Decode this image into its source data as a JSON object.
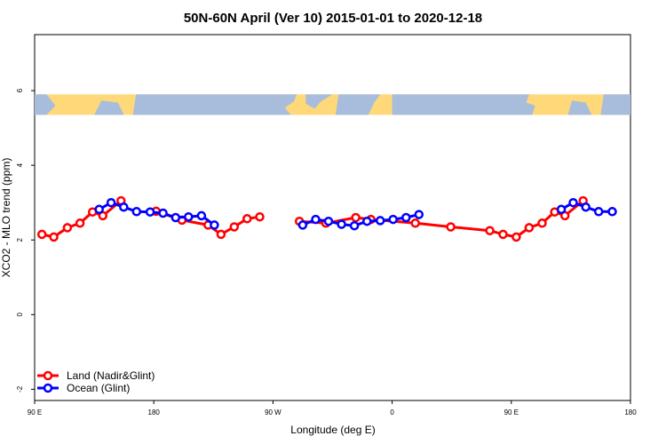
{
  "chart_data": {
    "type": "line",
    "title": "50N-60N April (Ver 10)   2015-01-01 to 2020-12-18",
    "xlabel": "Longitude (deg E)",
    "ylabel": "XCO2 - MLO trend (ppm)",
    "xlim": [
      90,
      270
    ],
    "ylim": [
      -2.3,
      7.5
    ],
    "xticks": [
      {
        "value": 90,
        "label": "90 E"
      },
      {
        "value": 126,
        "label": "180"
      },
      {
        "value": 162,
        "label": "90 W"
      },
      {
        "value": 198,
        "label": "0"
      },
      {
        "value": 234,
        "label": "90 E"
      },
      {
        "value": 270,
        "label": "180"
      }
    ],
    "yticks": [
      {
        "value": -2,
        "label": "-2"
      },
      {
        "value": 0,
        "label": "0"
      },
      {
        "value": 2,
        "label": "2"
      },
      {
        "value": 4,
        "label": "4"
      },
      {
        "value": 6,
        "label": "6"
      }
    ],
    "map_band": {
      "ymin": 5.35,
      "ymax": 5.9,
      "ocean_color": "#a8bddb",
      "land_color": "#ffd87a"
    },
    "series": [
      {
        "name": "Land (Nadir&Glint)",
        "color": "#ff0000",
        "segments": [
          [
            [
              92.2,
              2.15
            ],
            [
              95.8,
              2.08
            ],
            [
              99.9,
              2.33
            ],
            [
              103.7,
              2.45
            ],
            [
              107.5,
              2.75
            ],
            [
              110.6,
              2.65
            ],
            [
              116.1,
              3.05
            ]
          ],
          [
            [
              126.7,
              2.77
            ],
            [
              134.5,
              2.53
            ],
            [
              142.4,
              2.4
            ],
            [
              146.3,
              2.15
            ],
            [
              150.3,
              2.35
            ],
            [
              154.2,
              2.57
            ],
            [
              158,
              2.62
            ]
          ],
          [
            [
              170,
              2.5
            ],
            [
              178,
              2.45
            ],
            [
              187,
              2.6
            ],
            [
              191.6,
              2.55
            ],
            [
              205,
              2.45
            ],
            [
              215.7,
              2.35
            ],
            [
              227.5,
              2.25
            ],
            [
              231.5,
              2.15
            ],
            [
              235.5,
              2.08
            ],
            [
              239.4,
              2.33
            ],
            [
              243.3,
              2.45
            ],
            [
              247.1,
              2.75
            ],
            [
              250.2,
              2.65
            ],
            [
              255.7,
              3.05
            ]
          ]
        ]
      },
      {
        "name": "Ocean (Glint)",
        "color": "#0000ff",
        "segments": [
          [
            [
              109.5,
              2.82
            ],
            [
              113.1,
              3.0
            ],
            [
              116.9,
              2.88
            ],
            [
              120.8,
              2.76
            ],
            [
              124.9,
              2.75
            ],
            [
              128.8,
              2.72
            ],
            [
              132.6,
              2.6
            ],
            [
              136.5,
              2.62
            ],
            [
              140.4,
              2.65
            ],
            [
              144.3,
              2.4
            ]
          ],
          [
            [
              171,
              2.4
            ],
            [
              174.9,
              2.55
            ],
            [
              178.8,
              2.5
            ],
            [
              182.7,
              2.42
            ],
            [
              186.6,
              2.38
            ],
            [
              190.4,
              2.5
            ],
            [
              194.4,
              2.52
            ],
            [
              198.3,
              2.55
            ],
            [
              202.2,
              2.6
            ],
            [
              206.1,
              2.68
            ]
          ],
          [
            [
              249.1,
              2.82
            ],
            [
              252.7,
              3.0
            ],
            [
              256.5,
              2.88
            ],
            [
              260.4,
              2.76
            ],
            [
              264.5,
              2.76
            ]
          ]
        ]
      }
    ],
    "legend": {
      "position": "bottom-left",
      "entries": [
        {
          "label": "Land (Nadir&Glint)",
          "color": "#ff0000"
        },
        {
          "label": "Ocean (Glint)",
          "color": "#0000ff"
        }
      ]
    }
  }
}
